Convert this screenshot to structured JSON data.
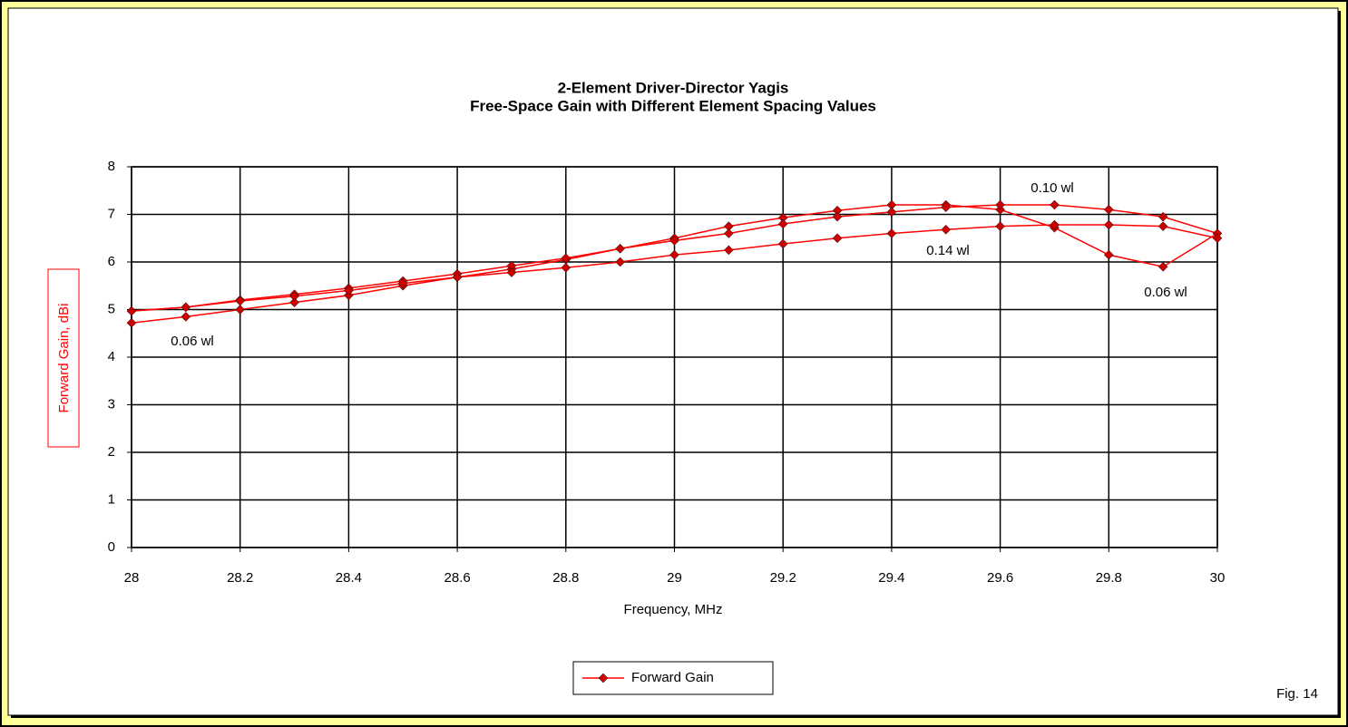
{
  "chart_data": {
    "type": "line",
    "title": "2-Element Driver-Director Yagis",
    "subtitle": "Free-Space Gain with Different Element Spacing Values",
    "x_label": "Frequency, MHz",
    "y_label": "Forward Gain,  dBi",
    "legend_label": "Forward Gain",
    "footnote": "Fig. 14",
    "annotations": [
      "0.10 wl",
      "0.14 wl",
      "0.06 wl",
      "0.06 wl"
    ],
    "x": [
      28,
      28.1,
      28.2,
      28.3,
      28.4,
      28.5,
      28.6,
      28.7,
      28.8,
      28.9,
      29,
      29.1,
      29.2,
      29.3,
      29.4,
      29.5,
      29.6,
      29.7,
      29.8,
      29.9,
      30
    ],
    "series": [
      {
        "color": "#ff0000",
        "values": [
          4.72,
          4.85,
          5.0,
          5.15,
          5.3,
          5.5,
          5.68,
          5.85,
          6.05,
          6.28,
          6.5,
          6.75,
          6.93,
          7.08,
          7.2,
          7.2,
          7.1,
          6.72,
          6.15,
          5.9,
          6.6
        ]
      },
      {
        "color": "#ff0000",
        "values": [
          4.97,
          5.05,
          5.2,
          5.32,
          5.45,
          5.6,
          5.75,
          5.92,
          6.08,
          6.28,
          6.45,
          6.6,
          6.8,
          6.95,
          7.05,
          7.15,
          7.2,
          7.2,
          7.1,
          6.95,
          6.6
        ]
      },
      {
        "color": "#ff0000",
        "values": [
          4.97,
          5.05,
          5.18,
          5.28,
          5.4,
          5.55,
          5.68,
          5.78,
          5.88,
          6.0,
          6.15,
          6.25,
          6.38,
          6.5,
          6.6,
          6.68,
          6.75,
          6.78,
          6.78,
          6.75,
          6.5
        ]
      }
    ],
    "xlim": [
      28,
      30
    ],
    "xticks": [
      28,
      28.2,
      28.4,
      28.6,
      28.8,
      29,
      29.2,
      29.4,
      29.6,
      29.8,
      30
    ],
    "ylim": [
      0,
      8
    ],
    "yticks": [
      0,
      1,
      2,
      3,
      4,
      5,
      6,
      7,
      8
    ],
    "grid": true
  }
}
